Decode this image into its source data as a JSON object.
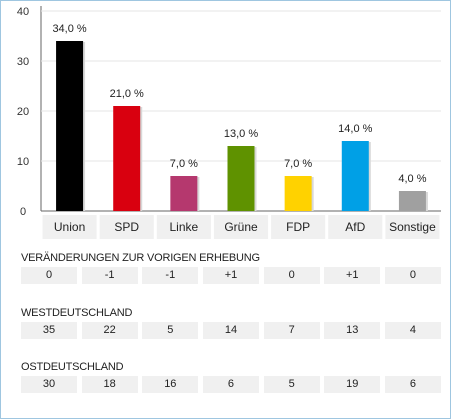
{
  "chart_data": {
    "type": "bar",
    "categories": [
      "Union",
      "SPD",
      "Linke",
      "Grüne",
      "FDP",
      "AfD",
      "Sonstige"
    ],
    "values": [
      34.0,
      21.0,
      7.0,
      13.0,
      7.0,
      14.0,
      4.0
    ],
    "value_labels": [
      "34,0 %",
      "21,0 %",
      "7,0 %",
      "13,0 %",
      "7,0 %",
      "14,0 %",
      "4,0 %"
    ],
    "colors": [
      "#000000",
      "#d9000f",
      "#b5386e",
      "#5f9200",
      "#ffd200",
      "#00a0e6",
      "#a0a0a0"
    ],
    "yticks": [
      "0",
      "10",
      "20",
      "30",
      "40"
    ],
    "ylim": [
      0,
      40
    ],
    "grid": true,
    "legend": "none"
  },
  "tables": [
    {
      "title": "VERÄNDERUNGEN ZUR VORIGEN ERHEBUNG",
      "values": [
        "0",
        "-1",
        "-1",
        "+1",
        "0",
        "+1",
        "0"
      ]
    },
    {
      "title": "WESTDEUTSCHLAND",
      "values": [
        "35",
        "22",
        "5",
        "14",
        "7",
        "13",
        "4"
      ]
    },
    {
      "title": "OSTDEUTSCHLAND",
      "values": [
        "30",
        "18",
        "16",
        "6",
        "5",
        "19",
        "6"
      ]
    }
  ]
}
